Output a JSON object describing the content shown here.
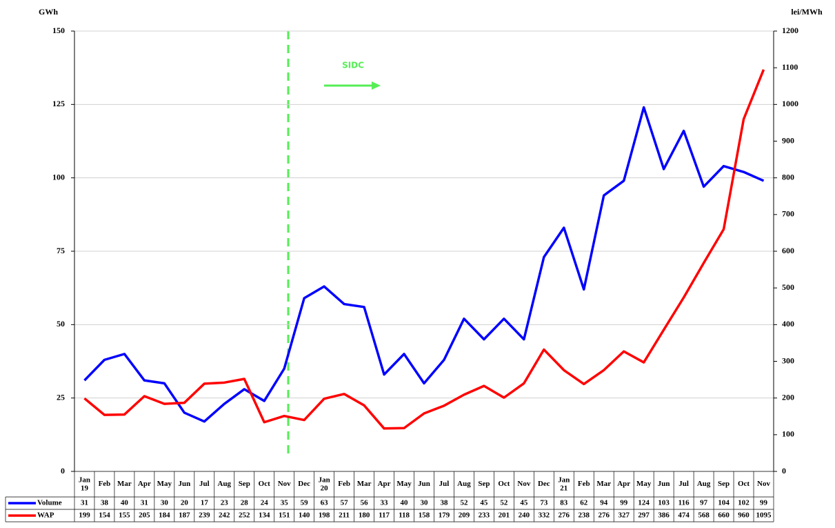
{
  "chart_data": {
    "type": "line",
    "y_label": "GWh",
    "y2_label": "lei/MWh",
    "annotation": "SIDC",
    "categories": [
      "Jan 19",
      "Feb",
      "Mar",
      "Apr",
      "May",
      "Jun",
      "Jul",
      "Aug",
      "Sep",
      "Oct",
      "Nov",
      "Dec",
      "Jan 20",
      "Feb",
      "Mar",
      "Apr",
      "May",
      "Jun",
      "Jul",
      "Aug",
      "Sep",
      "Oct",
      "Nov",
      "Dec",
      "Jan 21",
      "Feb",
      "Mar",
      "Apr",
      "May",
      "Jun",
      "Jul",
      "Aug",
      "Sep",
      "Oct",
      "Nov"
    ],
    "series": [
      {
        "name": "Volume",
        "color": "#0000ff",
        "axis": "y",
        "values": [
          31,
          38,
          40,
          31,
          30,
          20,
          17,
          23,
          28,
          24,
          35,
          59,
          63,
          57,
          56,
          33,
          40,
          30,
          38,
          52,
          45,
          52,
          45,
          73,
          83,
          62,
          94,
          99,
          124,
          103,
          116,
          97,
          104,
          102,
          99
        ]
      },
      {
        "name": "WAP",
        "color": "#ff0000",
        "axis": "y2",
        "values": [
          199,
          154,
          155,
          205,
          184,
          187,
          239,
          242,
          252,
          134,
          151,
          140,
          198,
          211,
          180,
          117,
          118,
          158,
          179,
          209,
          233,
          201,
          240,
          332,
          276,
          238,
          276,
          327,
          297,
          386,
          474,
          568,
          660,
          960,
          1095
        ]
      }
    ],
    "ylim": [
      0,
      150
    ],
    "yticks": [
      0,
      25,
      50,
      75,
      100,
      125,
      150
    ],
    "y2lim": [
      0,
      1200
    ],
    "y2ticks": [
      0,
      100,
      200,
      300,
      400,
      500,
      600,
      700,
      800,
      900,
      1000,
      1100,
      1200
    ],
    "grid": true
  }
}
